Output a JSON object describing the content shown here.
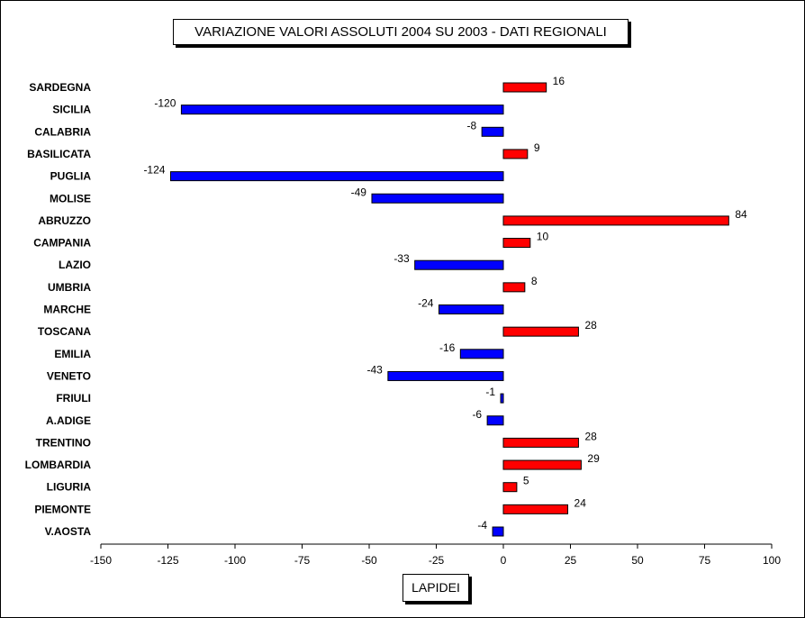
{
  "chart_data": {
    "type": "bar",
    "orientation": "horizontal",
    "title": "VARIAZIONE  VALORI ASSOLUTI 2004 SU 2003 - DATI REGIONALI",
    "xlabel": "LAPIDEI",
    "ylabel": "",
    "xlim": [
      -150,
      100
    ],
    "xticks": [
      -150,
      -125,
      -100,
      -75,
      -50,
      -25,
      0,
      25,
      50,
      75,
      100
    ],
    "categories": [
      "SARDEGNA",
      "SICILIA",
      "CALABRIA",
      "BASILICATA",
      "PUGLIA",
      "MOLISE",
      "ABRUZZO",
      "CAMPANIA",
      "LAZIO",
      "UMBRIA",
      "MARCHE",
      "TOSCANA",
      "EMILIA",
      "VENETO",
      "FRIULI",
      "A.ADIGE",
      "TRENTINO",
      "LOMBARDIA",
      "LIGURIA",
      "PIEMONTE",
      "V.AOSTA"
    ],
    "values": [
      16,
      -120,
      -8,
      9,
      -124,
      -49,
      84,
      10,
      -33,
      8,
      -24,
      28,
      -16,
      -43,
      -1,
      -6,
      28,
      29,
      5,
      24,
      -4
    ],
    "colors": {
      "positive": "#ff0000",
      "negative": "#0000ff"
    },
    "grid": false,
    "legend": "none"
  }
}
